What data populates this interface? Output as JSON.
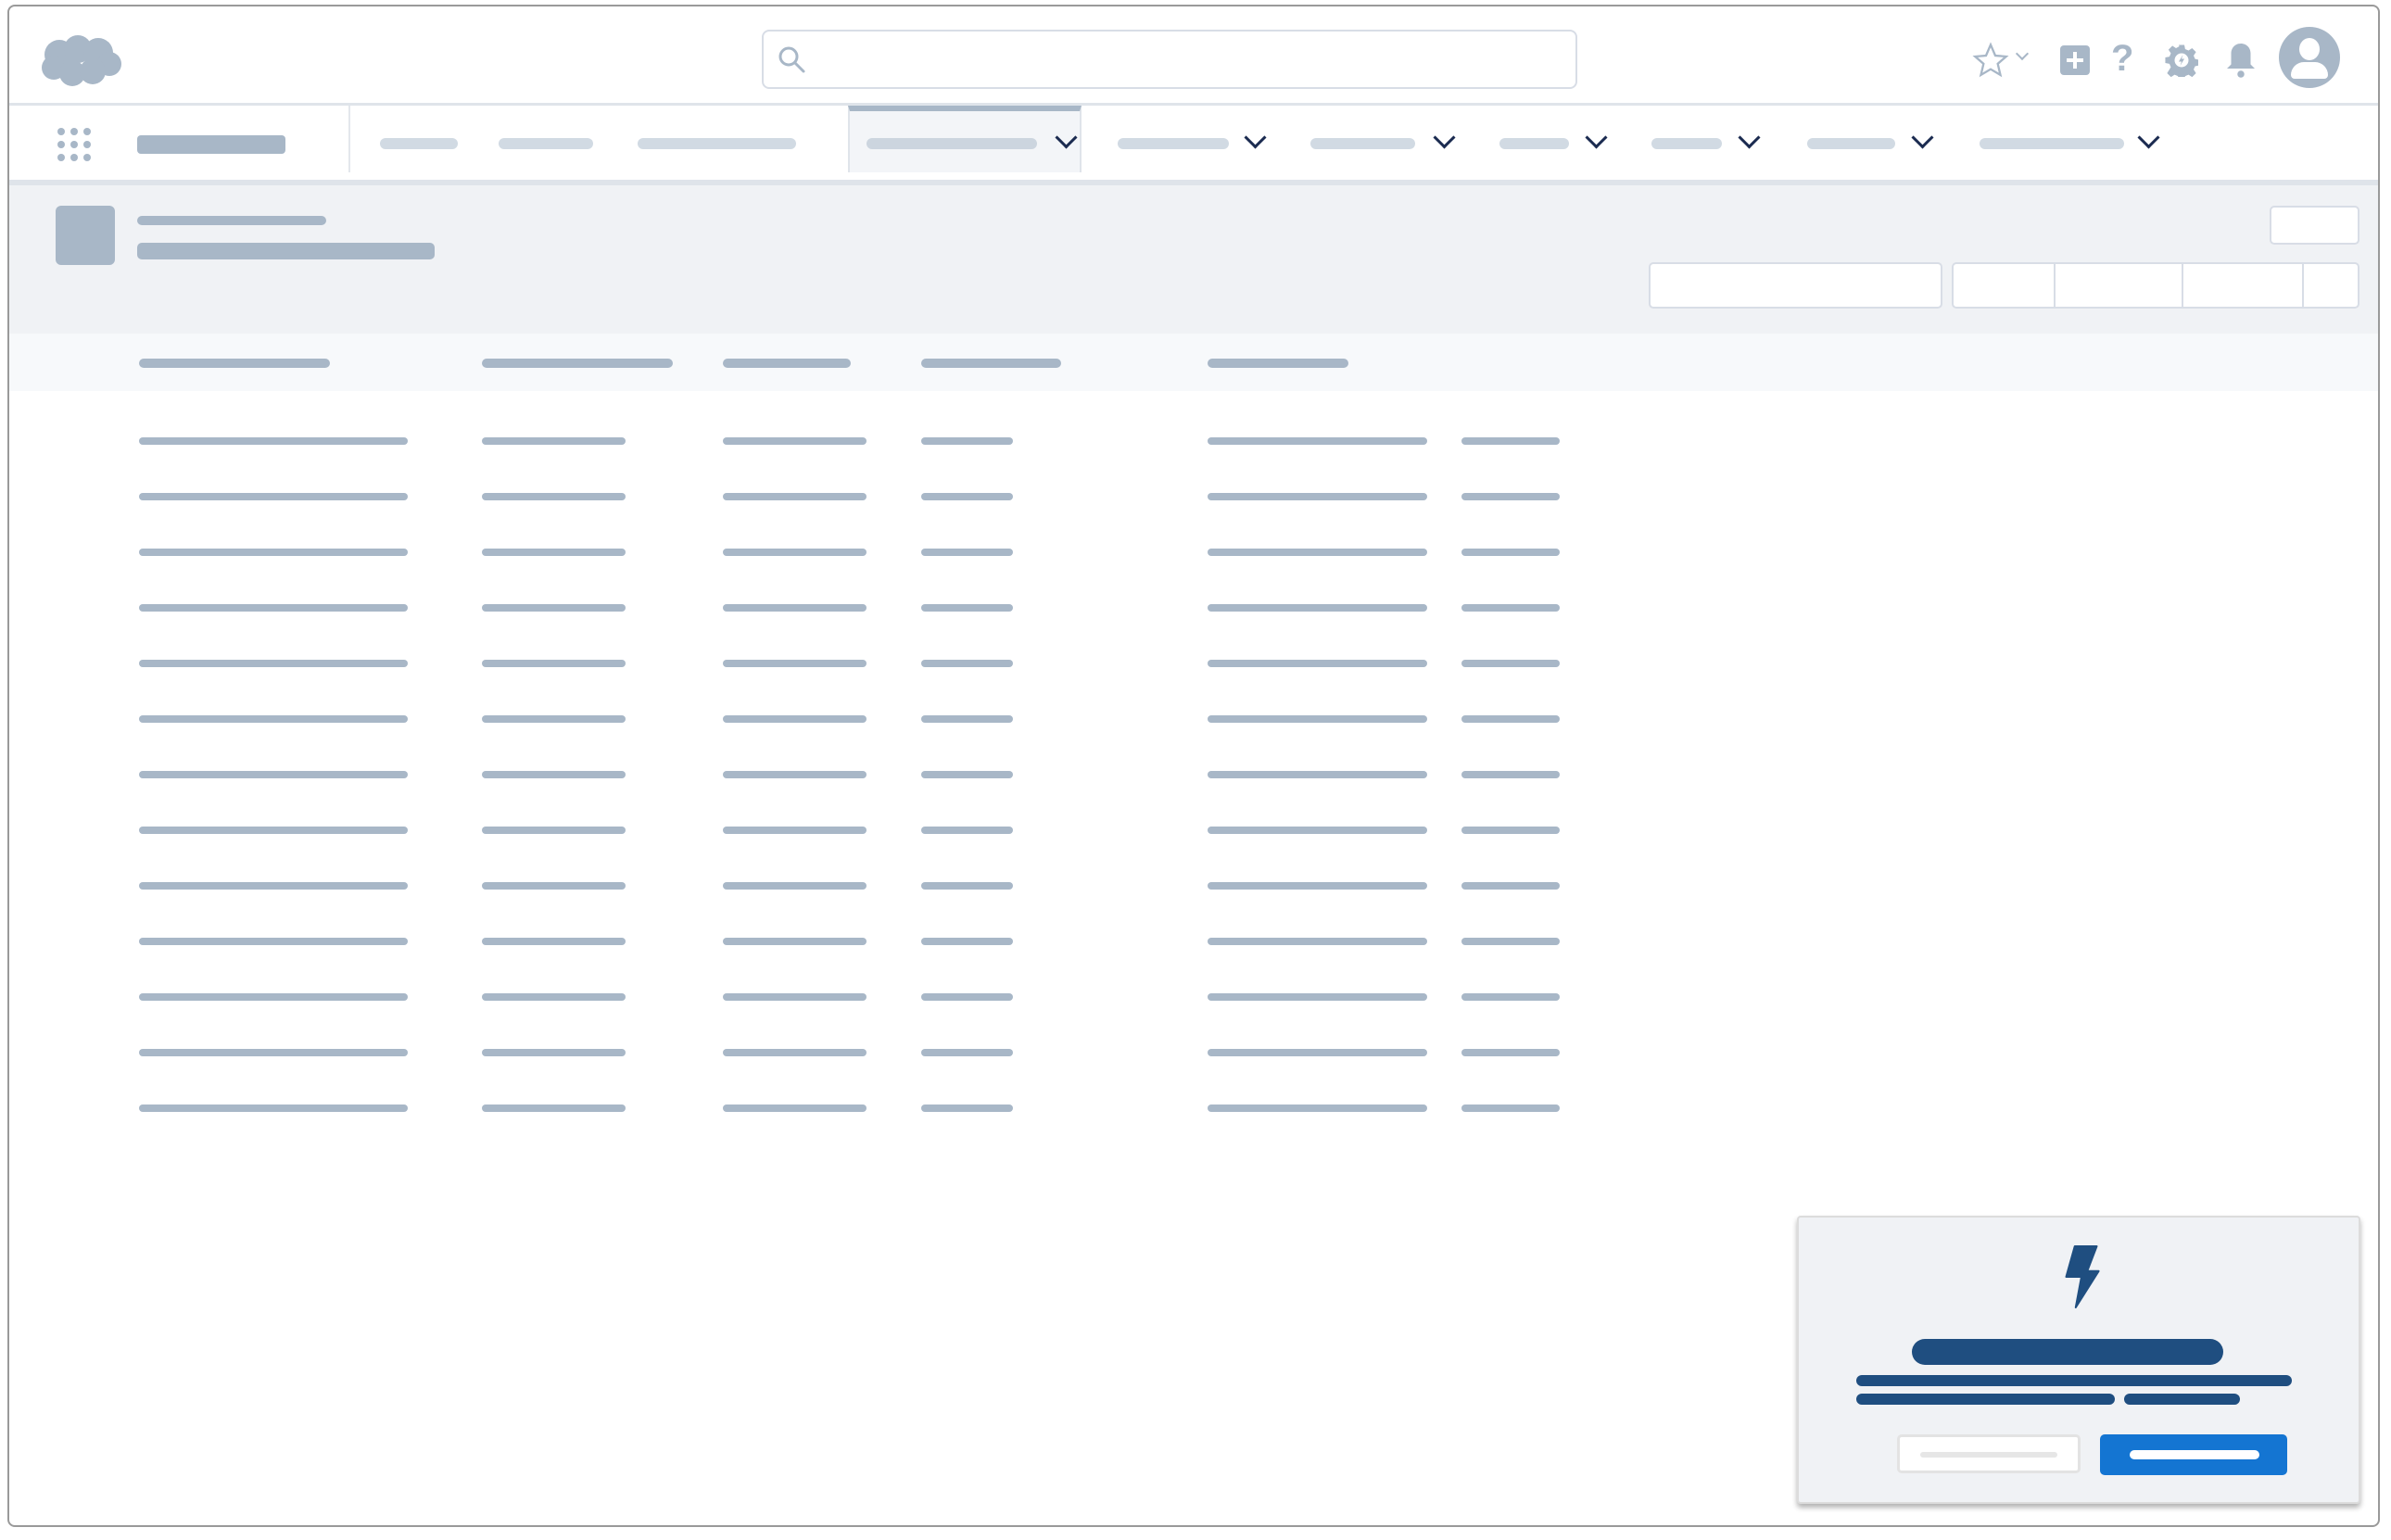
{
  "app": {
    "logo": "salesforce-cloud-logo"
  },
  "header": {
    "search": {
      "icon": "search-icon",
      "placeholder": ""
    },
    "icons": [
      "star-favorites-icon",
      "chevron-down-icon",
      "add-icon",
      "help-icon",
      "setup-gear-icon",
      "notifications-bell-icon",
      "user-avatar-icon"
    ]
  },
  "nav": {
    "launcher_icon": "app-launcher-grid-icon",
    "active_tab_index": 3,
    "tab_count_with_dropdown": 7
  },
  "table": {
    "row_count": 13,
    "column_count": 6
  },
  "prompt": {
    "icon": "lightning-bolt-icon"
  },
  "colors": {
    "placeholder": "#a8b7c7",
    "placeholder_light": "#d1dae3",
    "chevron": "#1b2b50",
    "prompt_text": "#1f4e80",
    "primary_button": "#1475d2",
    "page_header_bg": "#f0f2f5",
    "table_header_bg": "#f7f9fb"
  }
}
